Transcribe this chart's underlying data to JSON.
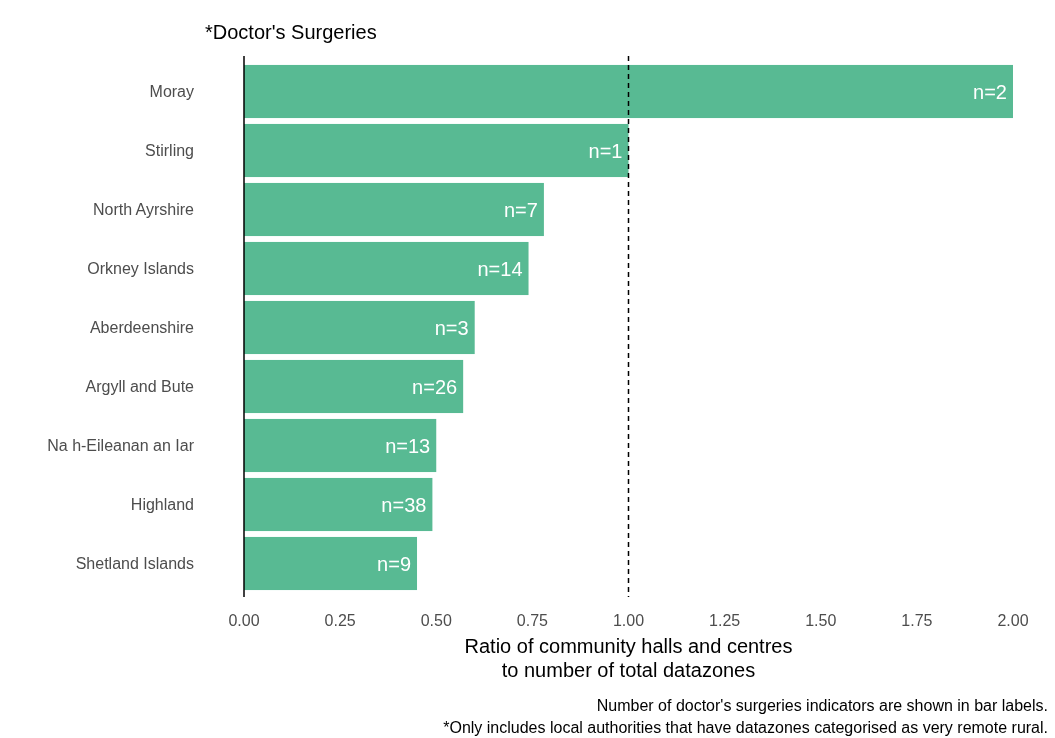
{
  "chart_data": {
    "type": "bar",
    "orientation": "horizontal",
    "title": "*Doctor's Surgeries",
    "xlabel": "Ratio of community halls and centres\nto number of total datazones",
    "categories": [
      "Moray",
      "Stirling",
      "North Ayrshire",
      "Orkney Islands",
      "Aberdeenshire",
      "Argyll and Bute",
      "Na h-Eileanan an Iar",
      "Highland",
      "Shetland Islands"
    ],
    "values": [
      2.0,
      1.0,
      0.78,
      0.74,
      0.6,
      0.57,
      0.5,
      0.49,
      0.45
    ],
    "color": "#58ba93",
    "xlim": [
      0,
      2
    ],
    "xticks": [
      {
        "value": 0,
        "label": "0.00"
      },
      {
        "value": 0.25,
        "label": "0.25"
      },
      {
        "value": 0.5,
        "label": "0.50"
      },
      {
        "value": 0.75,
        "label": "0.75"
      },
      {
        "value": 1,
        "label": "1.00"
      },
      {
        "value": 1.25,
        "label": "1.25"
      },
      {
        "value": 1.5,
        "label": "1.50"
      },
      {
        "value": 1.75,
        "label": "1.75"
      },
      {
        "value": 2,
        "label": "2.00"
      }
    ],
    "grid": false,
    "ref_lines": [
      {
        "axis": "x",
        "value": 1,
        "line_style": "dashed",
        "color": "#000000"
      }
    ],
    "annotations": [
      {
        "text": "n=2",
        "x": 2.0,
        "y": "Moray"
      },
      {
        "text": "n=1",
        "x": 1.0,
        "y": "Stirling"
      },
      {
        "text": "n=7",
        "x": 0.78,
        "y": "North Ayrshire"
      },
      {
        "text": "n=14",
        "x": 0.74,
        "y": "Orkney Islands"
      },
      {
        "text": "n=3",
        "x": 0.6,
        "y": "Aberdeenshire"
      },
      {
        "text": "n=26",
        "x": 0.57,
        "y": "Argyll and Bute"
      },
      {
        "text": "n=13",
        "x": 0.5,
        "y": "Na h-Eileanan an Iar"
      },
      {
        "text": "n=38",
        "x": 0.49,
        "y": "Highland"
      },
      {
        "text": "n=9",
        "x": 0.45,
        "y": "Shetland Islands"
      },
      "Number of doctor's surgeries indicators are shown in bar labels.",
      "*Only includes local authorities that have datazones categorised as very remote rural."
    ]
  }
}
